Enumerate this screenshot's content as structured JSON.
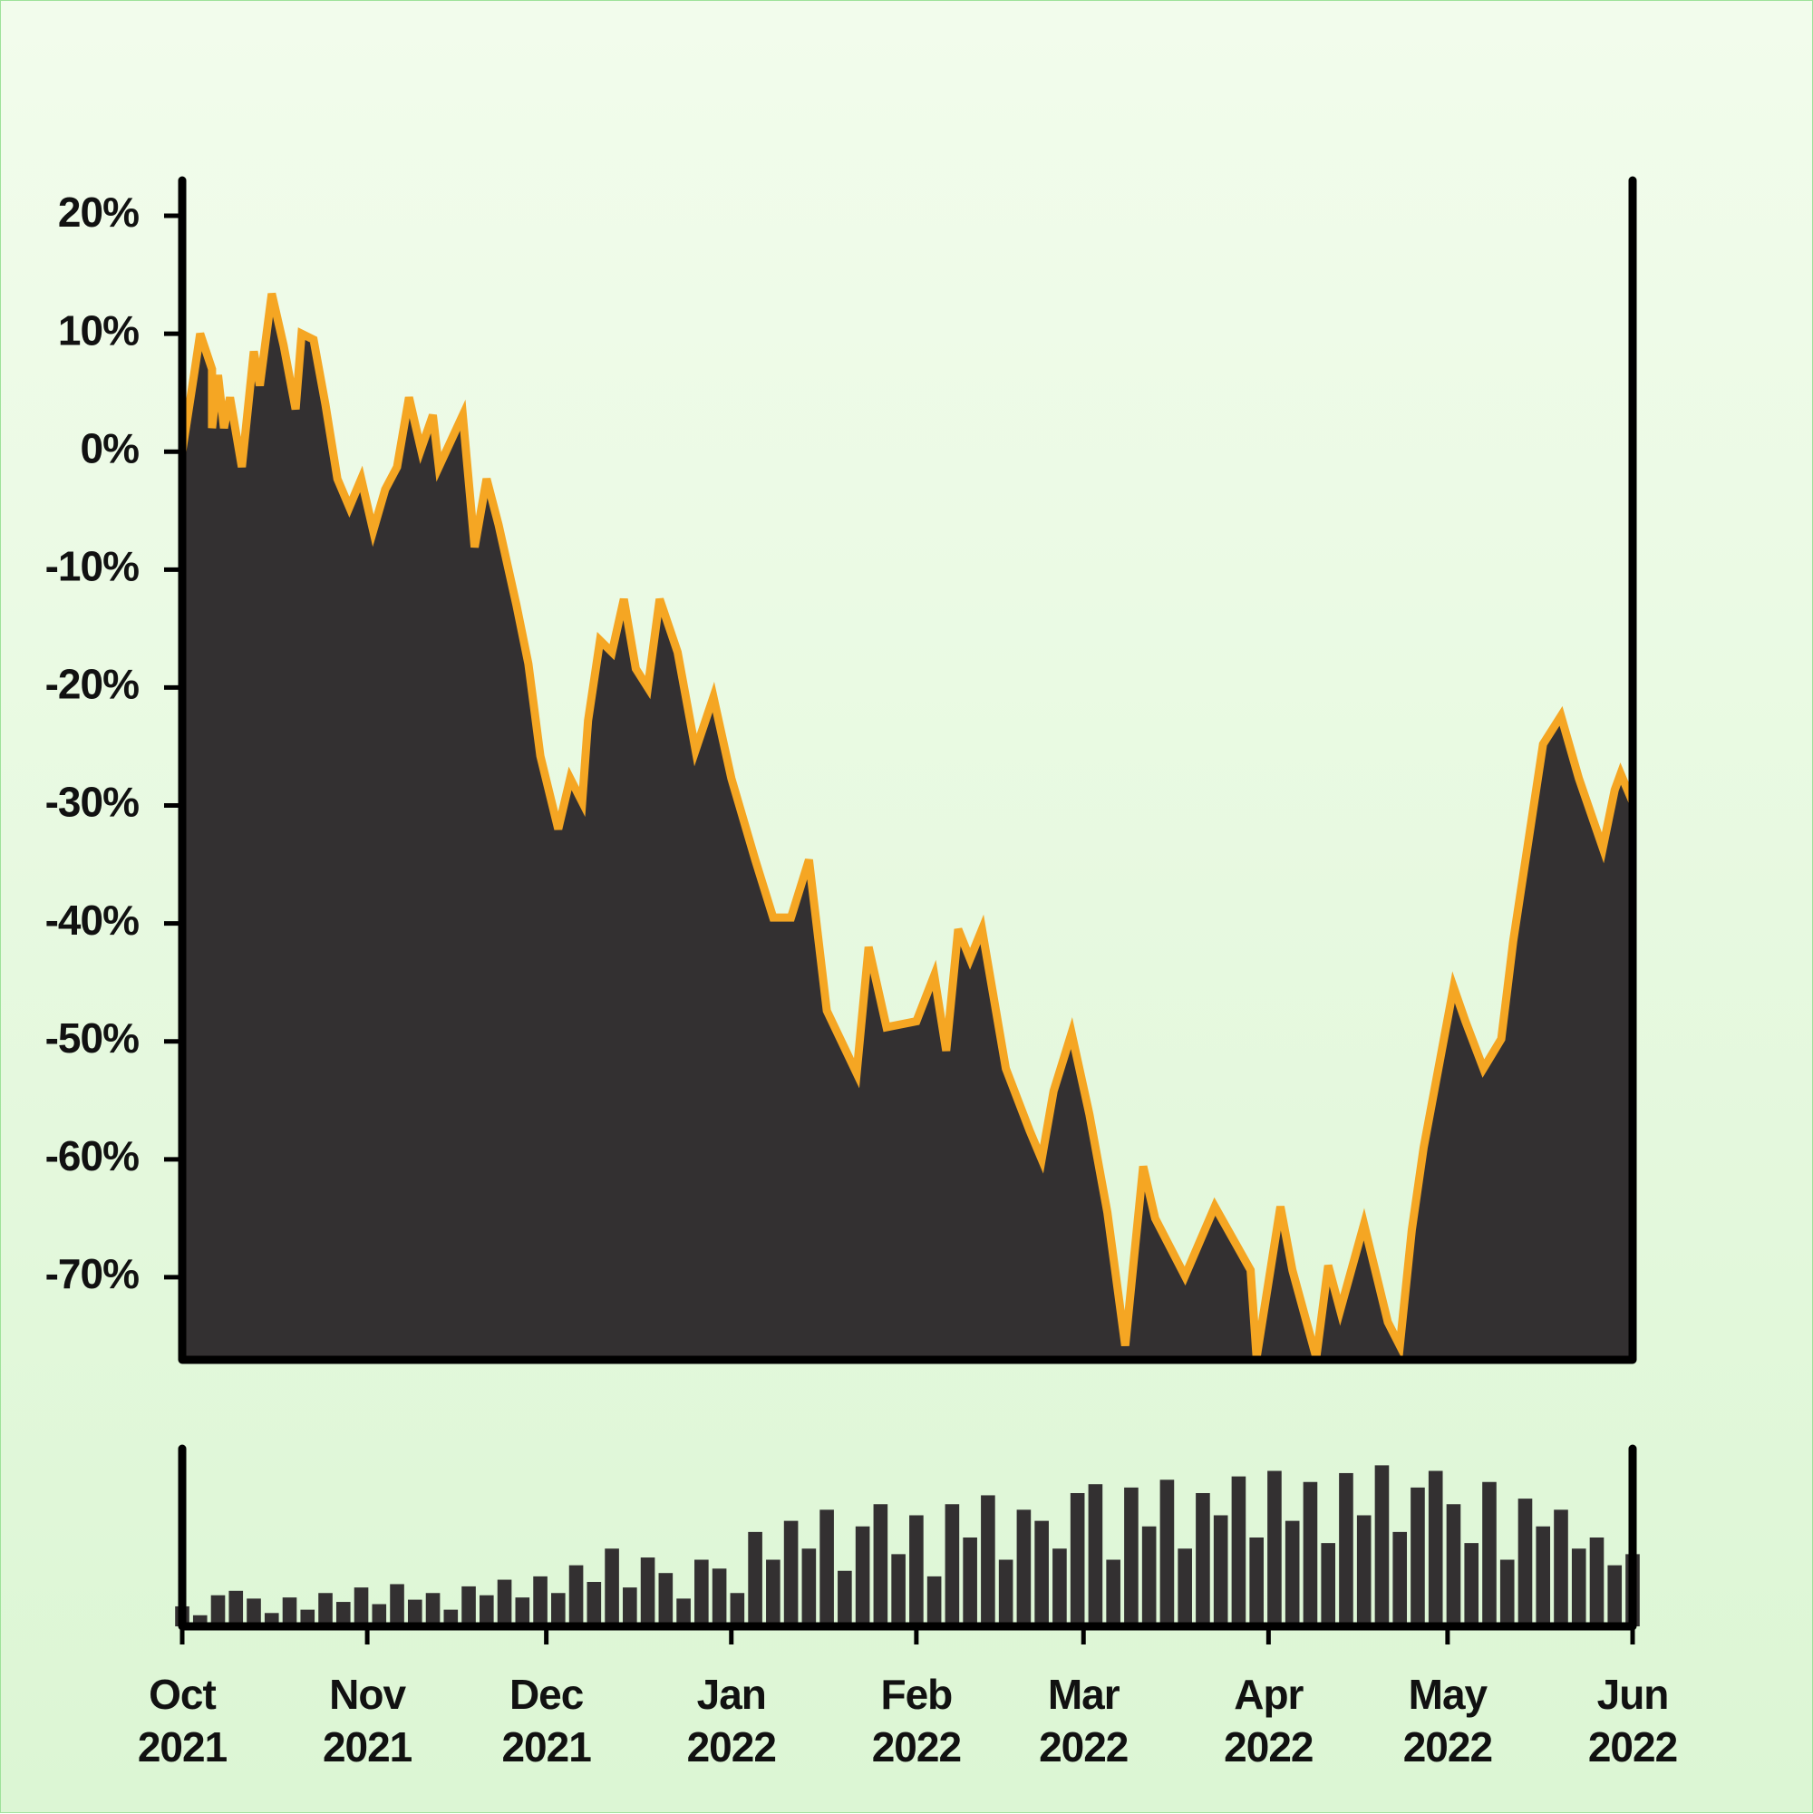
{
  "chart_data": [
    {
      "type": "area",
      "x": [
        0,
        2,
        3,
        5,
        5,
        6,
        7,
        8,
        10,
        12,
        13,
        15,
        17,
        19,
        20,
        22,
        24,
        26,
        28,
        30,
        32,
        34,
        36,
        38,
        40,
        42,
        43,
        47,
        49,
        51,
        53,
        56,
        58,
        60,
        63,
        65,
        67,
        68,
        70,
        72,
        74,
        76,
        78,
        80,
        83,
        86,
        89,
        92,
        96,
        99,
        102,
        105,
        108,
        113,
        115,
        118,
        123,
        126,
        128,
        130,
        132,
        134,
        138,
        142,
        144,
        146,
        149,
        152,
        155,
        158,
        161,
        163,
        168,
        173,
        179,
        180,
        184,
        186,
        190,
        192,
        194,
        198,
        202,
        204,
        206,
        208,
        213,
        215,
        218,
        221,
        223,
        228,
        231,
        234,
        238,
        240,
        241,
        243
      ],
      "values": [
        0,
        6.6,
        10,
        7,
        2,
        6.5,
        2,
        4.6,
        -1.3,
        8.5,
        5.6,
        13.4,
        9,
        3.6,
        10,
        9.5,
        4,
        -2.3,
        -4.7,
        -2.3,
        -6.7,
        -3.2,
        -1.3,
        4.6,
        0.2,
        3.1,
        -1.3,
        3.1,
        -8.1,
        -2.3,
        -6.2,
        -13,
        -18,
        -25.8,
        -32,
        -27.7,
        -29.7,
        -22.8,
        -16,
        -17,
        -12.5,
        -18.4,
        -20,
        -12.5,
        -17,
        -25.3,
        -20.8,
        -27.7,
        -34.6,
        -39.5,
        -39.5,
        -34.6,
        -47.4,
        -52.7,
        -42,
        -48.8,
        -48.3,
        -44.4,
        -50.8,
        -40.5,
        -43,
        -40.5,
        -52.3,
        -57.6,
        -60,
        -54.2,
        -49.3,
        -56.2,
        -64.5,
        -75.8,
        -60.6,
        -65,
        -69.9,
        -64,
        -69.4,
        -76.8,
        -64,
        -69.4,
        -76.8,
        -69,
        -72.8,
        -65.5,
        -73.8,
        -75.8,
        -66,
        -59,
        -45.4,
        -48.3,
        -52.3,
        -49.8,
        -41.5,
        -24.8,
        -22.4,
        -27.7,
        -33.6,
        -28.7,
        -27.3,
        -29.7
      ],
      "color": "#f5a623",
      "fill": "#333031",
      "xlim": [
        0,
        243
      ],
      "ylim": [
        -77,
        23
      ],
      "yticks": [
        {
          "value": 20,
          "label": "20%"
        },
        {
          "value": 10,
          "label": "10%"
        },
        {
          "value": 0,
          "label": "0%"
        },
        {
          "value": -10,
          "label": "-10%"
        },
        {
          "value": -20,
          "label": "-20%"
        },
        {
          "value": -30,
          "label": "-30%"
        },
        {
          "value": -40,
          "label": "-40%"
        },
        {
          "value": -50,
          "label": "-50%"
        },
        {
          "value": -60,
          "label": "-60%"
        },
        {
          "value": -70,
          "label": "-70%"
        }
      ]
    },
    {
      "type": "bar",
      "x": [
        0,
        3,
        6,
        9,
        12,
        15,
        18,
        21,
        24,
        27,
        30,
        33,
        36,
        39,
        42,
        45,
        48,
        51,
        54,
        57,
        60,
        63,
        66,
        69,
        72,
        75,
        78,
        81,
        84,
        87,
        90,
        93,
        96,
        99,
        102,
        105,
        108,
        111,
        114,
        117,
        120,
        123,
        126,
        129,
        132,
        135,
        138,
        141,
        144,
        147,
        150,
        153,
        156,
        159,
        162,
        165,
        168,
        171,
        174,
        177,
        180,
        183,
        186,
        189,
        192,
        195,
        198,
        201,
        204,
        207,
        210,
        213,
        216,
        219,
        222,
        225,
        228,
        231,
        234,
        237,
        240,
        243
      ],
      "values": [
        18,
        10,
        28,
        32,
        25,
        12,
        26,
        15,
        30,
        22,
        35,
        20,
        38,
        24,
        30,
        15,
        36,
        28,
        42,
        26,
        45,
        30,
        55,
        40,
        70,
        35,
        62,
        48,
        25,
        60,
        52,
        30,
        85,
        60,
        95,
        70,
        105,
        50,
        90,
        110,
        65,
        100,
        45,
        110,
        80,
        118,
        60,
        105,
        95,
        70,
        120,
        128,
        60,
        125,
        90,
        132,
        70,
        120,
        100,
        135,
        80,
        140,
        95,
        130,
        75,
        138,
        100,
        145,
        85,
        125,
        140,
        110,
        75,
        130,
        60,
        115,
        90,
        105,
        70,
        80,
        55,
        65
      ],
      "color": "#333031",
      "xlim": [
        0,
        243
      ],
      "ylim": [
        0,
        160
      ],
      "xticks": [
        {
          "value": 0,
          "label": "Oct\n2021"
        },
        {
          "value": 31,
          "label": "Nov\n2021"
        },
        {
          "value": 61,
          "label": "Dec\n2021"
        },
        {
          "value": 92,
          "label": "Jan\n2022"
        },
        {
          "value": 123,
          "label": "Feb\n2022"
        },
        {
          "value": 151,
          "label": "Mar\n2022"
        },
        {
          "value": 182,
          "label": "Apr\n2022"
        },
        {
          "value": 212,
          "label": "May\n2022"
        },
        {
          "value": 243,
          "label": "Jun\n2022"
        }
      ]
    }
  ]
}
